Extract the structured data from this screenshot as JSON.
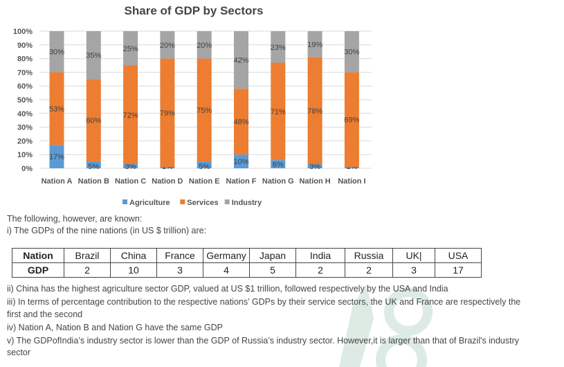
{
  "chart_data": {
    "type": "bar",
    "stacked": true,
    "title": "Share of GDP by Sectors",
    "categories": [
      "Nation A",
      "Nation B",
      "Nation C",
      "Nation D",
      "Nation E",
      "Nation F",
      "Nation G",
      "Nation H",
      "Nation I"
    ],
    "series": [
      {
        "name": "Agriculture",
        "color": "#5B9BD5",
        "values": [
          17,
          5,
          3,
          1,
          5,
          10,
          6,
          3,
          1
        ]
      },
      {
        "name": "Services",
        "color": "#ED7D31",
        "values": [
          53,
          60,
          72,
          79,
          75,
          48,
          71,
          78,
          69
        ]
      },
      {
        "name": "Industry",
        "color": "#A5A5A5",
        "values": [
          30,
          35,
          25,
          20,
          20,
          42,
          23,
          19,
          30
        ]
      }
    ],
    "yticks": [
      "0%",
      "10%",
      "20%",
      "30%",
      "40%",
      "50%",
      "60%",
      "70%",
      "80%",
      "90%",
      "100%"
    ],
    "ylim": [
      0,
      100
    ],
    "legend": "bottom",
    "grid": true
  },
  "text": {
    "intro": "The following, however, are known:",
    "i": "i) The GDPs of the nine nations (in US $ trillion) are:",
    "ii": "ii) China has the highest agriculture sector GDP, valued at US $1 trillion, followed respectively by the USA and India",
    "iii_a": "iii) In terms of percentage contribution to the respective nations’ GDPs by their service sectors, the UK and France are respectively the",
    "iii_b": "first and the second",
    "iv": "iv) Nation A, Nation B and Nation G have the same GDP",
    "v_a": "v) The GDPofIndia’s industry sector is lower than the GDP of Russia’s industry sector. However,it is larger than that of Brazil's industry",
    "v_b": "sector"
  },
  "table": {
    "row1_label": "Nation",
    "nations": [
      "Brazil",
      "China",
      "France",
      "Germany",
      "Japan",
      "India",
      "Russia",
      "UK|",
      "USA"
    ],
    "row2_label": "GDP",
    "gdp": [
      "2",
      "10",
      "3",
      "4",
      "5",
      "2",
      "2",
      "3",
      "17"
    ]
  }
}
